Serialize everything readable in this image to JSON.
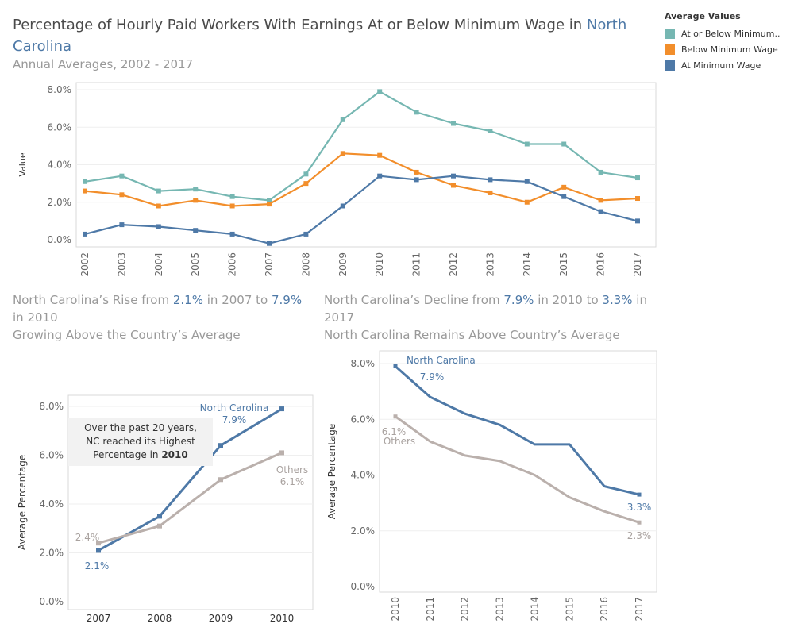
{
  "title": {
    "prefix": "Percentage of Hourly Paid Workers With Earnings At or Below Minimum Wage in ",
    "highlight": "North Carolina",
    "subtitle": "Annual Averages, 2002 - 2017"
  },
  "legend": {
    "title": "Average Values",
    "items": [
      {
        "label": "At or Below Minimum..",
        "color": "#76b7b2"
      },
      {
        "label": "Below Minimum Wage",
        "color": "#f28e2b"
      },
      {
        "label": "At Minimum Wage",
        "color": "#4e79a7"
      }
    ]
  },
  "left_section": {
    "l1_a": "North Carolina’s Rise from ",
    "l1_b": "2.1%",
    "l1_c": " in 2007 to ",
    "l1_d": "7.9%",
    "l2": "in 2010",
    "l3": "Growing Above the Country’s Average",
    "annotation_line1": "Over the past 20 years,",
    "annotation_line2": "NC reached its Highest",
    "annotation_line3a": "Percentage in ",
    "annotation_line3b": "2010"
  },
  "right_section": {
    "l1_a": "North Carolina’s Decline from ",
    "l1_b": "7.9%",
    "l1_c": " in 2010 to ",
    "l1_d": "3.3%",
    "l1_e": " in",
    "l2": "2017",
    "l3": "North Carolina Remains Above Country’s Average"
  },
  "chart_data": [
    {
      "type": "line",
      "ylabel": "Value",
      "ylim": [
        0,
        8
      ],
      "yticks": [
        "0.0%",
        "2.0%",
        "4.0%",
        "6.0%",
        "8.0%"
      ],
      "x": [
        "2002",
        "2003",
        "2004",
        "2005",
        "2006",
        "2007",
        "2008",
        "2009",
        "2010",
        "2011",
        "2012",
        "2013",
        "2014",
        "2015",
        "2016",
        "2017"
      ],
      "series": [
        {
          "name": "At or Below Minimum..",
          "color": "#76b7b2",
          "values": [
            3.1,
            3.4,
            2.6,
            2.7,
            2.3,
            2.1,
            3.5,
            6.4,
            7.9,
            6.8,
            6.2,
            5.8,
            5.1,
            5.1,
            3.6,
            3.3
          ]
        },
        {
          "name": "Below Minimum Wage",
          "color": "#f28e2b",
          "values": [
            2.6,
            2.4,
            1.8,
            2.1,
            1.8,
            1.9,
            3.0,
            4.6,
            4.5,
            3.6,
            2.9,
            2.5,
            2.0,
            2.8,
            2.1,
            2.2
          ]
        },
        {
          "name": "At Minimum Wage",
          "color": "#4e79a7",
          "values": [
            0.3,
            0.8,
            0.7,
            0.5,
            0.3,
            -0.2,
            0.3,
            1.8,
            3.4,
            3.2,
            3.4,
            3.2,
            3.1,
            2.3,
            1.5,
            1.0
          ]
        }
      ]
    },
    {
      "type": "line",
      "ylabel": "Average Percentage",
      "ylim": [
        0,
        8
      ],
      "yticks": [
        "0.0%",
        "2.0%",
        "4.0%",
        "6.0%",
        "8.0%"
      ],
      "x": [
        "2007",
        "2008",
        "2009",
        "2010"
      ],
      "series": [
        {
          "name": "North Carolina",
          "color": "#4e79a7",
          "values": [
            2.1,
            3.5,
            6.4,
            7.9
          ]
        },
        {
          "name": "Others",
          "color": "#bab0ac",
          "values": [
            2.4,
            3.1,
            5.0,
            6.1
          ]
        }
      ],
      "labels": {
        "nc_name": "North Carolina",
        "nc_end": "7.9%",
        "nc_start": "2.1%",
        "others_name": "Others",
        "others_end": "6.1%",
        "others_start": "2.4%"
      }
    },
    {
      "type": "line",
      "ylabel": "Average Percentage",
      "ylim": [
        0,
        8
      ],
      "yticks": [
        "0.0%",
        "2.0%",
        "4.0%",
        "6.0%",
        "8.0%"
      ],
      "x": [
        "2010",
        "2011",
        "2012",
        "2013",
        "2014",
        "2015",
        "2016",
        "2017"
      ],
      "series": [
        {
          "name": "North Carolina",
          "color": "#4e79a7",
          "values": [
            7.9,
            6.8,
            6.2,
            5.8,
            5.1,
            5.1,
            3.6,
            3.3
          ]
        },
        {
          "name": "Others",
          "color": "#bab0ac",
          "values": [
            6.1,
            5.2,
            4.7,
            4.5,
            4.0,
            3.2,
            2.7,
            2.3
          ]
        }
      ],
      "labels": {
        "nc_name": "North Carolina",
        "nc_start": "7.9%",
        "nc_end": "3.3%",
        "others_name": "Others",
        "others_start": "6.1%",
        "others_end": "2.3%"
      }
    }
  ]
}
